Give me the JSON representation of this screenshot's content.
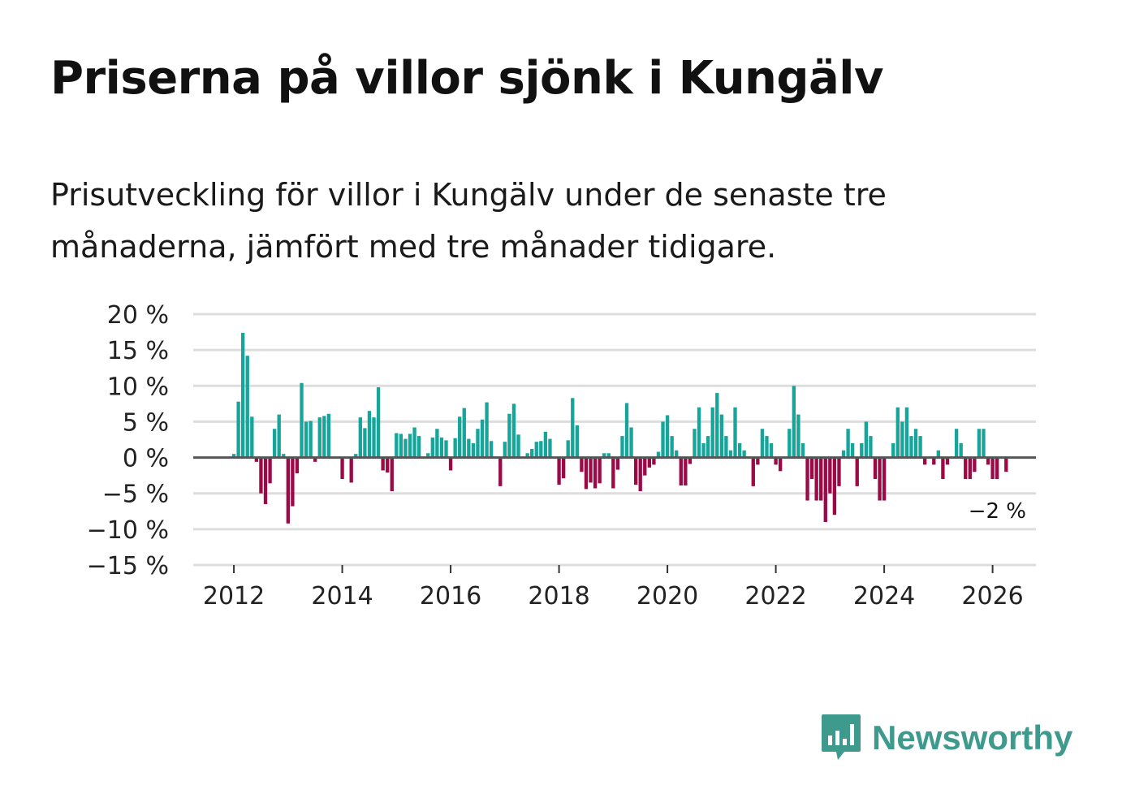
{
  "title": "Priserna på villor sjönk i Kungälv",
  "subtitle": "Prisutveckling för villor i Kungälv under de senaste tre månaderna, jämfört med tre månader tidigare.",
  "brand": {
    "name": "Newsworthy"
  },
  "colors": {
    "positive": "#16a59a",
    "negative": "#9b0a46",
    "gridline": "#dddddd",
    "zero_line": "#555555",
    "brand": "#3f9a8e"
  },
  "chart_data": {
    "type": "bar",
    "title": "Priserna på villor sjönk i Kungälv",
    "xlabel": "",
    "ylabel": "",
    "ylim": [
      -15,
      20
    ],
    "xlim": [
      2011.25,
      2026.8
    ],
    "grid": true,
    "y_ticks": [
      20,
      15,
      10,
      5,
      0,
      -5,
      -10,
      -15
    ],
    "y_tick_labels": [
      "20 %",
      "15 %",
      "10 %",
      "5 %",
      "0 %",
      "−5 %",
      "−10 %",
      "−15 %"
    ],
    "x_ticks": [
      2012,
      2014,
      2016,
      2018,
      2020,
      2022,
      2024,
      2026
    ],
    "x_tick_labels": [
      "2012",
      "2014",
      "2016",
      "2018",
      "2020",
      "2022",
      "2024",
      "2026"
    ],
    "end_label": "−2 %",
    "start_year": 2012,
    "bars_per_year": 12,
    "values": [
      0.5,
      7.8,
      17.4,
      14.2,
      5.7,
      -0.6,
      -5.0,
      -6.5,
      -3.6,
      4.0,
      6.0,
      0.5,
      -9.2,
      -6.8,
      -2.2,
      10.4,
      5.0,
      5.1,
      -0.6,
      5.6,
      5.8,
      6.1,
      0.0,
      0.0,
      -3.0,
      0.0,
      -3.5,
      0.5,
      5.6,
      4.1,
      6.5,
      5.6,
      9.8,
      -1.8,
      -2.1,
      -4.7,
      3.4,
      3.3,
      2.6,
      3.3,
      4.2,
      3.0,
      0.0,
      0.6,
      2.8,
      4.0,
      2.8,
      2.4,
      -1.8,
      2.7,
      5.7,
      6.9,
      2.6,
      2.0,
      4.0,
      5.3,
      7.7,
      2.3,
      0.0,
      -4.0,
      2.2,
      6.1,
      7.5,
      3.2,
      0.0,
      0.6,
      1.2,
      2.2,
      2.3,
      3.6,
      2.6,
      0.0,
      -3.8,
      -2.9,
      2.4,
      8.3,
      4.5,
      -2.0,
      -4.4,
      -3.5,
      -4.3,
      -3.6,
      0.6,
      0.6,
      -4.3,
      -1.7,
      3.0,
      7.6,
      4.2,
      -3.8,
      -4.7,
      -2.5,
      -1.4,
      -1.0,
      0.8,
      5.0,
      5.9,
      3.0,
      1.0,
      -3.9,
      -3.9,
      -0.9,
      4.0,
      7.0,
      2.0,
      3.0,
      7.0,
      9.0,
      6.0,
      3.0,
      1.0,
      7.0,
      2.0,
      1.0,
      0.0,
      -4.0,
      -1.0,
      4.0,
      3.0,
      2.0,
      -1.0,
      -1.9,
      0.0,
      4.0,
      10.0,
      6.0,
      2.0,
      -6.0,
      -3.0,
      -6.0,
      -6.0,
      -9.0,
      -5.0,
      -8.0,
      -4.0,
      1.0,
      4.0,
      2.0,
      -4.0,
      2.0,
      5.0,
      3.0,
      -3.0,
      -6.0,
      -6.0,
      0.0,
      2.0,
      7.0,
      5.0,
      7.0,
      3.0,
      4.0,
      3.0,
      -1.0,
      0.0,
      -1.0,
      1.0,
      -3.0,
      -1.0,
      0.0,
      4.0,
      2.0,
      -3.0,
      -3.0,
      -2.0,
      4.0,
      4.0,
      -1.0,
      -3.0,
      -3.0,
      0.0,
      -2.0
    ]
  }
}
